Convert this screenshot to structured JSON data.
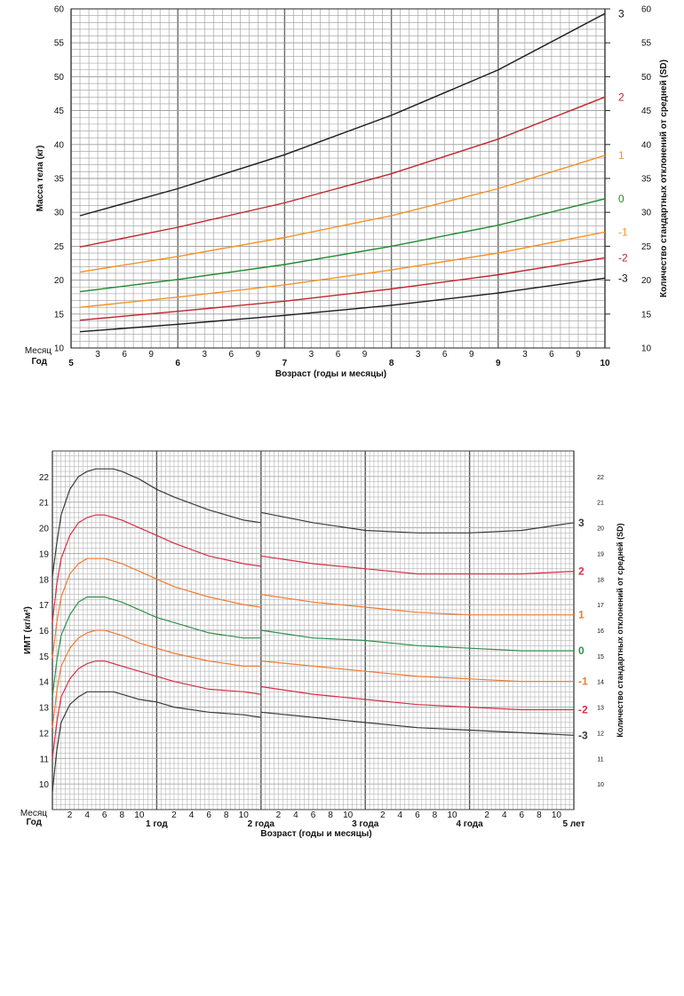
{
  "weight_chart": {
    "chart_data": {
      "type": "line",
      "xlabel": "Возраст (годы и месяцы)",
      "ylabel": "Масса тела (кг)",
      "ylabel_right": "Количество стандартных отклонений от средней (SD)",
      "row_labels": {
        "month": "Месяц",
        "year": "Год"
      },
      "x_unit": "months",
      "xlim": [
        60,
        120
      ],
      "ylim": [
        10,
        60
      ],
      "y_ticks": [
        10,
        15,
        20,
        25,
        30,
        35,
        40,
        45,
        50,
        55,
        60
      ],
      "month_tick_labels": [
        "3",
        "6",
        "9"
      ],
      "year_tick_labels": [
        "5",
        "6",
        "7",
        "8",
        "9",
        "10"
      ],
      "grid": true,
      "series": [
        {
          "name": "3",
          "color": "#1a1a1a",
          "x": [
            61,
            72,
            84,
            96,
            108,
            120
          ],
          "values": [
            29.5,
            33.5,
            38.5,
            44.3,
            51.0,
            59.3
          ]
        },
        {
          "name": "2",
          "color": "#c0262c",
          "x": [
            61,
            72,
            84,
            96,
            108,
            120
          ],
          "values": [
            24.9,
            27.8,
            31.4,
            35.7,
            40.8,
            47.0
          ]
        },
        {
          "name": "1",
          "color": "#f39222",
          "x": [
            61,
            72,
            84,
            96,
            108,
            120
          ],
          "values": [
            21.2,
            23.5,
            26.3,
            29.5,
            33.5,
            38.4
          ]
        },
        {
          "name": "0",
          "color": "#1e8a2c",
          "x": [
            61,
            72,
            84,
            96,
            108,
            120
          ],
          "values": [
            18.3,
            20.1,
            22.3,
            25.0,
            28.1,
            32.0
          ]
        },
        {
          "name": "-1",
          "color": "#f39222",
          "x": [
            61,
            72,
            84,
            96,
            108,
            120
          ],
          "values": [
            16.0,
            17.5,
            19.3,
            21.5,
            24.0,
            27.1
          ]
        },
        {
          "name": "-2",
          "color": "#c0262c",
          "x": [
            61,
            72,
            84,
            96,
            108,
            120
          ],
          "values": [
            14.1,
            15.4,
            16.9,
            18.7,
            20.8,
            23.3
          ]
        },
        {
          "name": "-3",
          "color": "#1a1a1a",
          "x": [
            61,
            72,
            84,
            96,
            108,
            120
          ],
          "values": [
            12.4,
            13.5,
            14.8,
            16.3,
            18.1,
            20.3
          ]
        }
      ]
    }
  },
  "bmi_chart": {
    "chart_data": {
      "type": "line",
      "xlabel": "Возраст (годы и месяцы)",
      "ylabel": "ИМТ (кг/м²)",
      "ylabel_right": "Количество стандартных отклонений от средней (SD)",
      "row_labels": {
        "month": "Месяц",
        "year": "Год"
      },
      "x_unit": "months",
      "xlim": [
        0,
        60
      ],
      "ylim": [
        9,
        23
      ],
      "y_ticks": [
        10,
        11,
        12,
        13,
        14,
        15,
        16,
        17,
        18,
        19,
        20,
        21,
        22
      ],
      "month_tick_labels": [
        "2",
        "4",
        "6",
        "8",
        "10"
      ],
      "year_tick_labels": [
        "1 год",
        "2 года",
        "3 года",
        "4 года",
        "5 лет"
      ],
      "grid": true,
      "segments_break_at_month": 24,
      "series": [
        {
          "name": "3",
          "color": "#3a3a3a",
          "bold": true,
          "x": [
            0,
            0.5,
            1,
            2,
            3,
            4,
            5,
            6,
            7,
            8,
            10,
            12,
            14,
            18,
            22,
            24,
            24,
            30,
            36,
            42,
            48,
            54,
            60
          ],
          "values": [
            18.1,
            19.4,
            20.5,
            21.5,
            22.0,
            22.2,
            22.3,
            22.3,
            22.3,
            22.2,
            21.9,
            21.5,
            21.2,
            20.7,
            20.3,
            20.2,
            20.6,
            20.2,
            19.9,
            19.8,
            19.8,
            19.9,
            20.2
          ]
        },
        {
          "name": "2",
          "color": "#d63045",
          "bold": true,
          "x": [
            0,
            0.5,
            1,
            2,
            3,
            4,
            5,
            6,
            7,
            8,
            10,
            12,
            14,
            18,
            22,
            24,
            24,
            30,
            36,
            42,
            48,
            54,
            60
          ],
          "values": [
            16.3,
            17.8,
            18.8,
            19.7,
            20.2,
            20.4,
            20.5,
            20.5,
            20.4,
            20.3,
            20.0,
            19.7,
            19.4,
            18.9,
            18.6,
            18.5,
            18.9,
            18.6,
            18.4,
            18.2,
            18.2,
            18.2,
            18.3
          ]
        },
        {
          "name": "1",
          "color": "#f07a34",
          "bold": true,
          "x": [
            0,
            0.5,
            1,
            2,
            3,
            4,
            5,
            6,
            7,
            8,
            10,
            12,
            14,
            18,
            22,
            24,
            24,
            30,
            36,
            42,
            48,
            54,
            60
          ],
          "values": [
            14.9,
            16.3,
            17.3,
            18.2,
            18.6,
            18.8,
            18.8,
            18.8,
            18.7,
            18.6,
            18.3,
            18.0,
            17.7,
            17.3,
            17.0,
            16.9,
            17.4,
            17.1,
            16.9,
            16.7,
            16.6,
            16.6,
            16.6
          ]
        },
        {
          "name": "0",
          "color": "#2f8f4a",
          "bold": true,
          "x": [
            0,
            0.5,
            1,
            2,
            3,
            4,
            5,
            6,
            7,
            8,
            10,
            12,
            14,
            18,
            22,
            24,
            24,
            30,
            36,
            42,
            48,
            54,
            60
          ],
          "values": [
            13.4,
            14.8,
            15.8,
            16.6,
            17.1,
            17.3,
            17.3,
            17.3,
            17.2,
            17.1,
            16.8,
            16.5,
            16.3,
            15.9,
            15.7,
            15.7,
            16.0,
            15.7,
            15.6,
            15.4,
            15.3,
            15.2,
            15.2
          ]
        },
        {
          "name": "-1",
          "color": "#f07a34",
          "bold": true,
          "x": [
            0,
            0.5,
            1,
            2,
            3,
            4,
            5,
            6,
            7,
            8,
            10,
            12,
            14,
            18,
            22,
            24,
            24,
            30,
            36,
            42,
            48,
            54,
            60
          ],
          "values": [
            12.2,
            13.6,
            14.6,
            15.3,
            15.7,
            15.9,
            16.0,
            16.0,
            15.9,
            15.8,
            15.5,
            15.3,
            15.1,
            14.8,
            14.6,
            14.6,
            14.8,
            14.6,
            14.4,
            14.2,
            14.1,
            14.0,
            14.0
          ]
        },
        {
          "name": "-2",
          "color": "#d63045",
          "bold": true,
          "x": [
            0,
            0.5,
            1,
            2,
            3,
            4,
            5,
            6,
            7,
            8,
            10,
            12,
            14,
            18,
            22,
            24,
            24,
            30,
            36,
            42,
            48,
            54,
            60
          ],
          "values": [
            11.0,
            12.4,
            13.4,
            14.1,
            14.5,
            14.7,
            14.8,
            14.8,
            14.7,
            14.6,
            14.4,
            14.2,
            14.0,
            13.7,
            13.6,
            13.5,
            13.8,
            13.5,
            13.3,
            13.1,
            13.0,
            12.9,
            12.9
          ]
        },
        {
          "name": "-3",
          "color": "#3a3a3a",
          "bold": true,
          "x": [
            0,
            0.5,
            1,
            2,
            3,
            4,
            5,
            6,
            7,
            8,
            10,
            12,
            14,
            18,
            22,
            24,
            24,
            30,
            36,
            42,
            48,
            54,
            60
          ],
          "values": [
            9.7,
            11.3,
            12.4,
            13.1,
            13.4,
            13.6,
            13.6,
            13.6,
            13.6,
            13.5,
            13.3,
            13.2,
            13.0,
            12.8,
            12.7,
            12.6,
            12.8,
            12.6,
            12.4,
            12.2,
            12.1,
            12.0,
            11.9
          ]
        }
      ]
    }
  }
}
